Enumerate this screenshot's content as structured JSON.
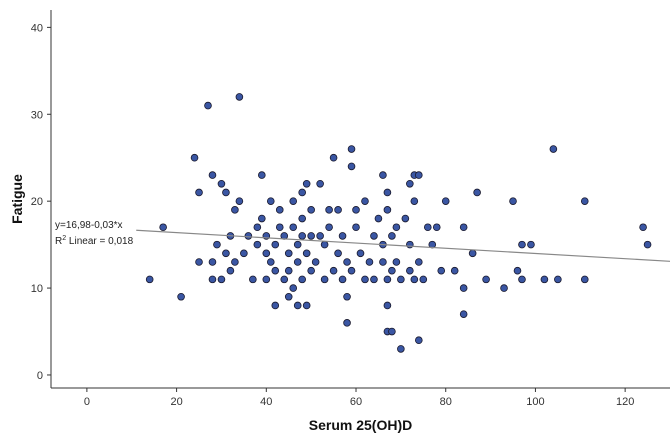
{
  "chart_data": {
    "type": "scatter",
    "title": "",
    "xlabel": "Serum 25(OH)D",
    "ylabel": "Fatigue",
    "xlim": [
      -8,
      130
    ],
    "ylim": [
      -1.5,
      42
    ],
    "xticks": [
      0,
      20,
      40,
      60,
      80,
      100,
      120
    ],
    "yticks": [
      0,
      10,
      20,
      30,
      40
    ],
    "grid": false,
    "legend": "none",
    "point_color": "#3a56a3",
    "point_edge": "#1a1a2e",
    "fit_line": {
      "intercept": 16.98,
      "slope": -0.03,
      "x_range": [
        11,
        130
      ],
      "color": "#888888"
    },
    "annotations": {
      "equation": "y=16,98-0,03*x",
      "r2_prefix": "R",
      "r2_sup": "2",
      "r2_suffix": " Linear = 0,018"
    },
    "points": [
      [
        14,
        11
      ],
      [
        17,
        17
      ],
      [
        21,
        9
      ],
      [
        24,
        25
      ],
      [
        25,
        21
      ],
      [
        25,
        13
      ],
      [
        27,
        31
      ],
      [
        28,
        11
      ],
      [
        28,
        13
      ],
      [
        28,
        23
      ],
      [
        29,
        15
      ],
      [
        30,
        22
      ],
      [
        30,
        11
      ],
      [
        31,
        14
      ],
      [
        31,
        21
      ],
      [
        32,
        12
      ],
      [
        32,
        16
      ],
      [
        33,
        13
      ],
      [
        33,
        19
      ],
      [
        34,
        32
      ],
      [
        34,
        20
      ],
      [
        35,
        14
      ],
      [
        36,
        16
      ],
      [
        37,
        11
      ],
      [
        38,
        15
      ],
      [
        38,
        17
      ],
      [
        39,
        18
      ],
      [
        39,
        23
      ],
      [
        40,
        16
      ],
      [
        40,
        14
      ],
      [
        40,
        11
      ],
      [
        41,
        20
      ],
      [
        41,
        13
      ],
      [
        42,
        12
      ],
      [
        42,
        15
      ],
      [
        42,
        8
      ],
      [
        43,
        19
      ],
      [
        43,
        17
      ],
      [
        44,
        11
      ],
      [
        44,
        16
      ],
      [
        45,
        14
      ],
      [
        45,
        9
      ],
      [
        45,
        12
      ],
      [
        46,
        17
      ],
      [
        46,
        20
      ],
      [
        46,
        10
      ],
      [
        47,
        15
      ],
      [
        47,
        13
      ],
      [
        47,
        8
      ],
      [
        48,
        18
      ],
      [
        48,
        21
      ],
      [
        48,
        16
      ],
      [
        48,
        11
      ],
      [
        49,
        14
      ],
      [
        49,
        22
      ],
      [
        49,
        8
      ],
      [
        50,
        16
      ],
      [
        50,
        19
      ],
      [
        50,
        12
      ],
      [
        51,
        13
      ],
      [
        52,
        22
      ],
      [
        52,
        16
      ],
      [
        53,
        11
      ],
      [
        53,
        15
      ],
      [
        54,
        19
      ],
      [
        54,
        17
      ],
      [
        55,
        12
      ],
      [
        55,
        25
      ],
      [
        56,
        14
      ],
      [
        56,
        19
      ],
      [
        57,
        11
      ],
      [
        57,
        16
      ],
      [
        58,
        13
      ],
      [
        58,
        9
      ],
      [
        58,
        6
      ],
      [
        59,
        26
      ],
      [
        59,
        24
      ],
      [
        59,
        12
      ],
      [
        60,
        17
      ],
      [
        60,
        19
      ],
      [
        61,
        14
      ],
      [
        62,
        11
      ],
      [
        62,
        20
      ],
      [
        63,
        13
      ],
      [
        64,
        11
      ],
      [
        64,
        16
      ],
      [
        65,
        18
      ],
      [
        66,
        23
      ],
      [
        66,
        15
      ],
      [
        66,
        13
      ],
      [
        67,
        21
      ],
      [
        67,
        19
      ],
      [
        67,
        11
      ],
      [
        67,
        8
      ],
      [
        67,
        5
      ],
      [
        68,
        16
      ],
      [
        68,
        12
      ],
      [
        68,
        5
      ],
      [
        69,
        13
      ],
      [
        69,
        17
      ],
      [
        70,
        11
      ],
      [
        70,
        3
      ],
      [
        71,
        18
      ],
      [
        72,
        15
      ],
      [
        72,
        22
      ],
      [
        72,
        12
      ],
      [
        73,
        23
      ],
      [
        73,
        20
      ],
      [
        73,
        11
      ],
      [
        74,
        23
      ],
      [
        74,
        13
      ],
      [
        74,
        4
      ],
      [
        75,
        11
      ],
      [
        76,
        17
      ],
      [
        77,
        15
      ],
      [
        78,
        17
      ],
      [
        79,
        12
      ],
      [
        80,
        20
      ],
      [
        82,
        12
      ],
      [
        84,
        17
      ],
      [
        84,
        10
      ],
      [
        84,
        7
      ],
      [
        86,
        14
      ],
      [
        87,
        21
      ],
      [
        89,
        11
      ],
      [
        93,
        10
      ],
      [
        95,
        20
      ],
      [
        96,
        12
      ],
      [
        97,
        15
      ],
      [
        97,
        11
      ],
      [
        99,
        15
      ],
      [
        102,
        11
      ],
      [
        104,
        26
      ],
      [
        105,
        11
      ],
      [
        111,
        20
      ],
      [
        111,
        11
      ],
      [
        124,
        17
      ],
      [
        125,
        15
      ]
    ]
  }
}
